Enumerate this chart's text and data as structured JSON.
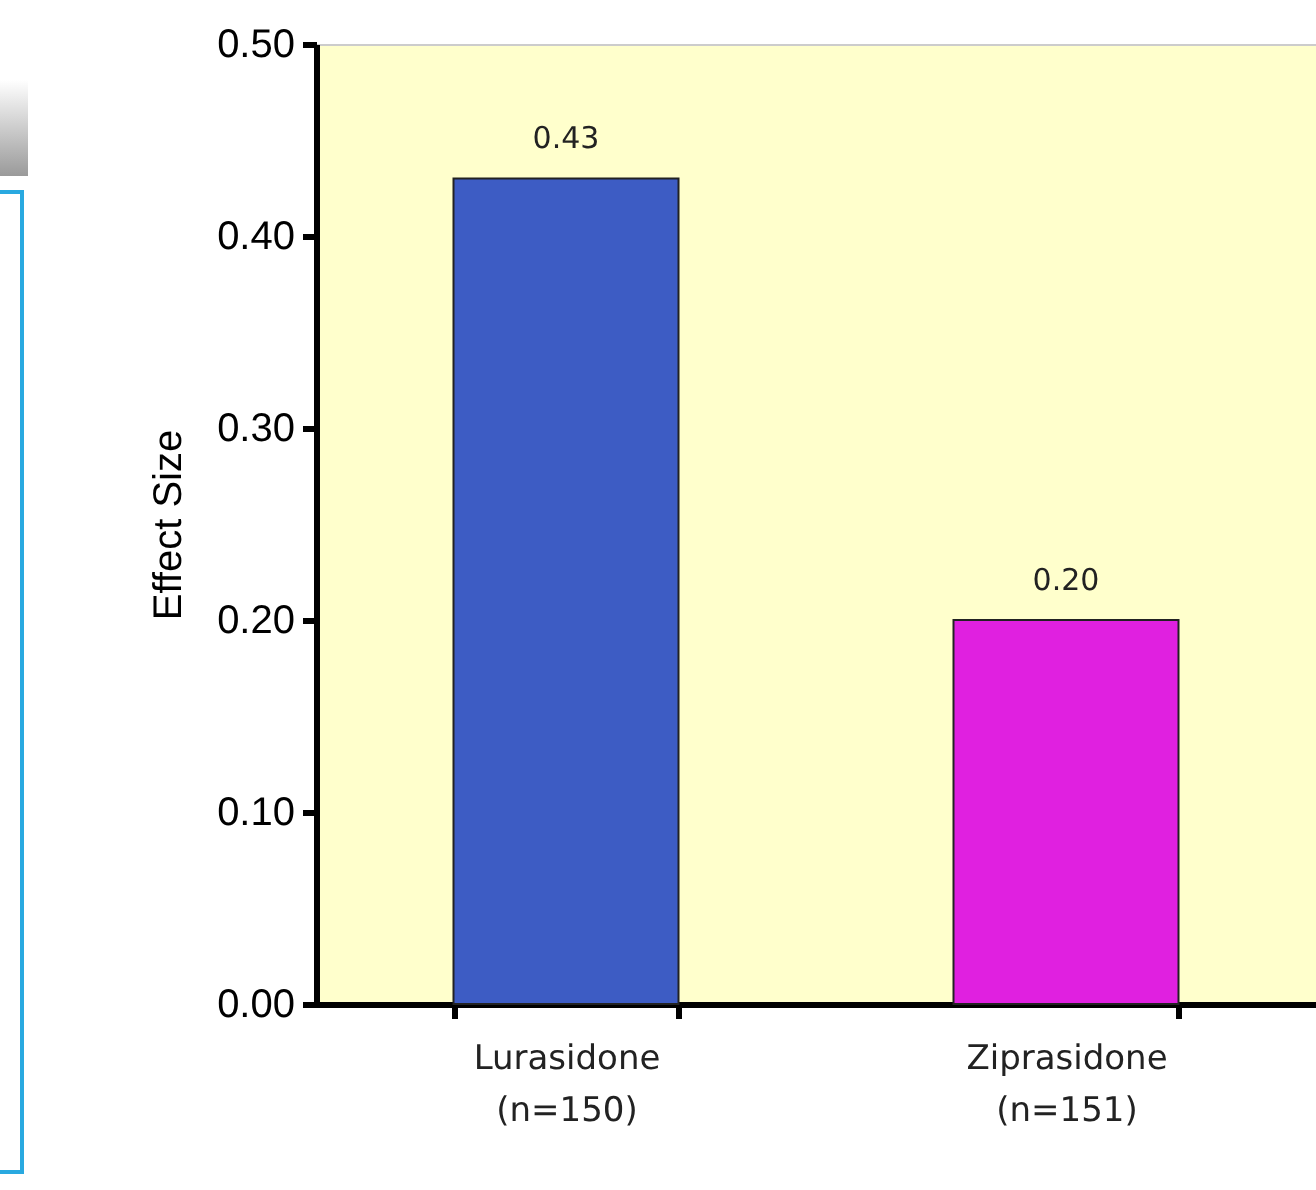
{
  "chart_data": {
    "type": "bar",
    "ylabel": "Effect Size",
    "categories": [
      "Lurasidone\n(n=150)",
      "Ziprasidone\n(n=151)"
    ],
    "values": [
      0.43,
      0.2
    ],
    "colors": [
      "#3d5cc4",
      "#e020e0"
    ],
    "value_labels": [
      "0.43",
      "0.20"
    ],
    "ylim": [
      0,
      0.5
    ],
    "yticks": [
      {
        "value": 0,
        "label": "0.00"
      },
      {
        "value": 0.1,
        "label": "0.10"
      },
      {
        "value": 0.2,
        "label": "0.20"
      },
      {
        "value": 0.3,
        "label": "0.30"
      },
      {
        "value": 0.4,
        "label": "0.40"
      },
      {
        "value": 0.5,
        "label": "0.50"
      }
    ],
    "grid": false
  }
}
